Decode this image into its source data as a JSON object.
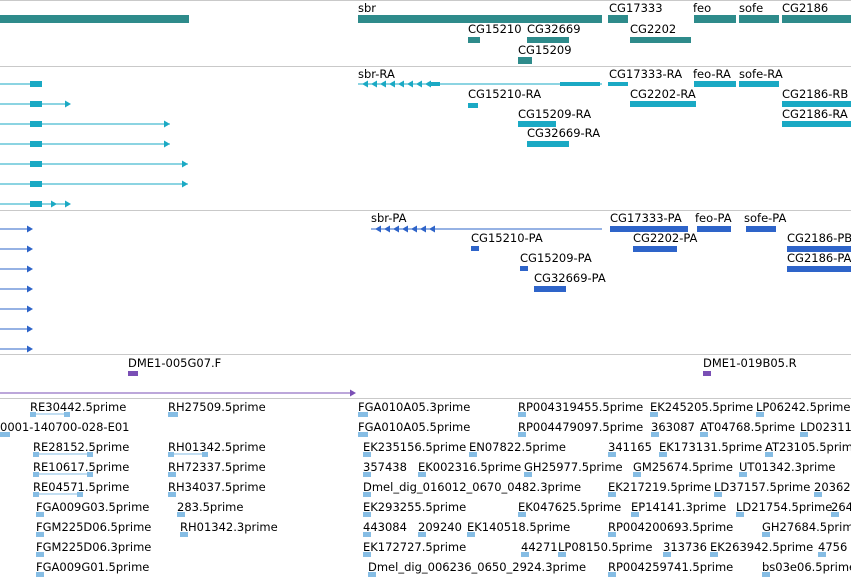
{
  "colors": {
    "gene": "#2e8b8b",
    "rna": "#1aa9c4",
    "protein": "#2e64c9",
    "primer": "#7a4fb5",
    "est": "#86bde4",
    "divider": "#c9c9c9"
  },
  "genes": {
    "labels": [
      "sbr",
      "CG17333",
      "feo",
      "sofe",
      "CG2186",
      "CG15210",
      "CG32669",
      "CG2202",
      "CG15209"
    ]
  },
  "transcripts": {
    "labels": [
      "sbr-RA",
      "CG17333-RA",
      "feo-RA",
      "sofe-RA",
      "CG15210-RA",
      "CG2202-RA",
      "CG2186-RB",
      "CG15209-RA",
      "CG2186-RA",
      "CG32669-RA"
    ]
  },
  "proteins": {
    "labels": [
      "sbr-PA",
      "CG17333-PA",
      "feo-PA",
      "sofe-PA",
      "CG15210-PA",
      "CG2202-PA",
      "CG2186-PB",
      "CG15209-PA",
      "CG2186-PA",
      "CG32669-PA"
    ]
  },
  "primers": {
    "labels": [
      "DME1-005G07.F",
      "DME1-019B05.R"
    ]
  },
  "ests": {
    "labels": [
      "RE30442.5prime",
      "RH27509.5prime",
      "FGA010A05.3prime",
      "RP004319455.5prime",
      "EK245205.5prime",
      "LP06242.5prime",
      "0001-140700-028-E01",
      "FGA010A05.5prime",
      "RP004479097.5prime",
      "363087",
      "AT04768.5prime",
      "LD02311",
      "RE28152.5prime",
      "RH01342.5prime",
      "EK235156.5prime",
      "EN07822.5prime",
      "341165",
      "EK173131.5prime",
      "AT23105.5prime",
      "RE10617.5prime",
      "RH72337.5prime",
      "357438",
      "EK002316.5prime",
      "GH25977.5prime",
      "GM25674.5prime",
      "UT01342.3prime",
      "RE04571.5prime",
      "RH34037.5prime",
      "Dmel_dig_016012_0670_0482.3prime",
      "EK217219.5prime",
      "LD37157.5prime",
      "20362",
      "FGA009G03.5prime",
      "283.5prime",
      "EK293255.5prime",
      "EK047625.5prime",
      "EP14141.3prime",
      "LD21754.5prime",
      "264",
      "FGM225D06.5prime",
      "RH01342.3prime",
      "443084",
      "209240",
      "EK140518.5prime",
      "RP004200693.5prime",
      "GH27684.5prime",
      "FGM225D06.3prime",
      "EK172727.5prime",
      "44271",
      "LP08150.5prime",
      "313736",
      "EK263942.5prime",
      "4756",
      "FGA009G01.5prime",
      "Dmel_dig_006236_0650_2924.3prime",
      "RP004259741.5prime",
      "bs03e06.5prime"
    ]
  }
}
